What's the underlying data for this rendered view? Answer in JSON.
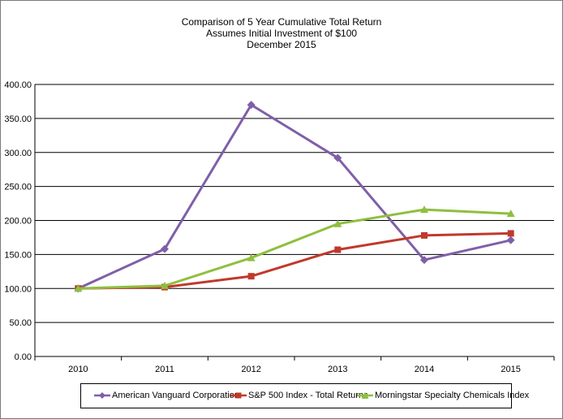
{
  "chart_data": {
    "type": "line",
    "title": [
      "Comparison of 5 Year Cumulative Total Return",
      "Assumes Initial Investment of $100",
      "December 2015"
    ],
    "categories": [
      "2010",
      "2011",
      "2012",
      "2013",
      "2014",
      "2015"
    ],
    "ylim": [
      0,
      400
    ],
    "yticks": [
      "0.00",
      "50.00",
      "100.00",
      "150.00",
      "200.00",
      "250.00",
      "300.00",
      "350.00",
      "400.00"
    ],
    "grid": true,
    "legend_position": "bottom",
    "series": [
      {
        "name": "American Vanguard Corporation",
        "values": [
          100,
          158,
          370,
          292,
          142,
          171
        ],
        "color": "#7f5fa8",
        "marker": "diamond"
      },
      {
        "name": "S&P 500 Index - Total Returns",
        "values": [
          100,
          102,
          118,
          157,
          178,
          181
        ],
        "color": "#c0392b",
        "marker": "square"
      },
      {
        "name": "Morningstar Specialty Chemicals Index",
        "values": [
          100,
          104,
          145,
          195,
          216,
          210
        ],
        "color": "#8fbf3f",
        "marker": "triangle"
      }
    ]
  }
}
